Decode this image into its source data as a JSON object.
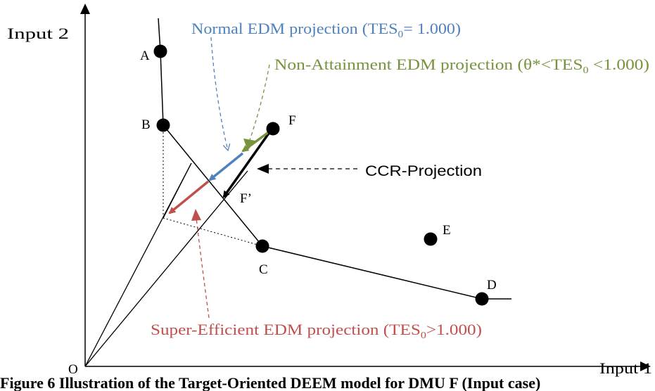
{
  "axes": {
    "y_label": "Input 2",
    "x_label": "Input 1",
    "origin_label": "O"
  },
  "points": {
    "A": "A",
    "B": "B",
    "C": "C",
    "D": "D",
    "E": "E",
    "F": "F",
    "F_prime": "F’"
  },
  "annotations": {
    "normal_edm": {
      "prefix": "Normal EDM projection (TES",
      "sub": "0",
      "suffix": "= 1.000)",
      "color": "#4F81BD"
    },
    "non_attainment_edm": {
      "prefix": "Non-Attainment EDM projection (θ*<TES",
      "sub": "0",
      "suffix": " <1.000)",
      "color": "#77933C"
    },
    "ccr_projection": {
      "text": "CCR-Projection",
      "color": "#000000"
    },
    "super_efficient_edm": {
      "prefix": "Super-Efficient EDM projection (TES",
      "sub": "0",
      "suffix": ">1.000)",
      "color": "#C0504D"
    }
  },
  "caption": "Figure 6 Illustration of the Target-Oriented DEEM model for DMU F (Input case)"
}
